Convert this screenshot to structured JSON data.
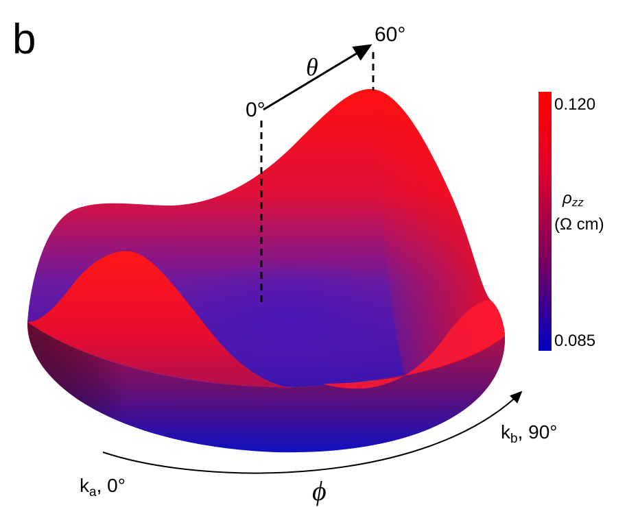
{
  "panel_label": "b",
  "theta": {
    "symbol": "θ",
    "start_label": "0°",
    "end_label": "60°"
  },
  "phi": {
    "symbol": "ϕ",
    "start_label_main": "k",
    "start_label_sub": "a",
    "start_label_rest": ", 0°",
    "end_label_main": "k",
    "end_label_sub": "b",
    "end_label_rest": ", 90°"
  },
  "colorbar": {
    "max_label": "0.120",
    "min_label": "0.085",
    "quantity_symbol": "ρ",
    "quantity_sub": "zz",
    "unit": "(Ω cm)",
    "color_max": "#ff0000",
    "color_min": "#0000c0"
  },
  "colors": {
    "high": "#ff0a14",
    "mid": "#a0004a",
    "low": "#3a10b0"
  }
}
